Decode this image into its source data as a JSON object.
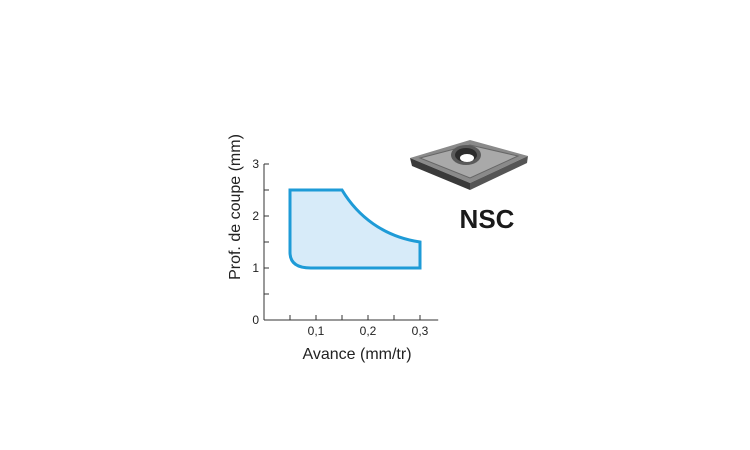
{
  "chart_data": {
    "type": "area",
    "title": "",
    "xlabel": "Avance (mm/tr)",
    "ylabel": "Prof. de coupe (mm)",
    "xlim": [
      0,
      0.335
    ],
    "ylim": [
      0,
      3
    ],
    "x_ticks": [
      0.1,
      0.2,
      0.3
    ],
    "x_tick_labels": [
      "0,1",
      "0,2",
      "0,3"
    ],
    "x_minor_ticks": [
      0.05,
      0.15,
      0.25
    ],
    "y_ticks": [
      0,
      1,
      2,
      3
    ],
    "y_tick_labels": [
      "0",
      "1",
      "2",
      "3"
    ],
    "y_minor_ticks": [
      0.5,
      1.5,
      2.5
    ],
    "grid": false,
    "region": {
      "label": "NSC",
      "boundary": [
        {
          "x": 0.05,
          "y": 2.5
        },
        {
          "x": 0.15,
          "y": 2.5
        },
        {
          "x": 0.18,
          "y": 2.1
        },
        {
          "x": 0.22,
          "y": 1.8
        },
        {
          "x": 0.26,
          "y": 1.6
        },
        {
          "x": 0.3,
          "y": 1.5
        },
        {
          "x": 0.3,
          "y": 1.0
        },
        {
          "x": 0.09,
          "y": 1.0
        },
        {
          "x": 0.05,
          "y": 1.3
        }
      ],
      "fill_color": "#d7ebf9",
      "stroke_color": "#1e9bd7"
    }
  },
  "insert": {
    "label": "NSC",
    "icon": "diamond-insert-image"
  }
}
